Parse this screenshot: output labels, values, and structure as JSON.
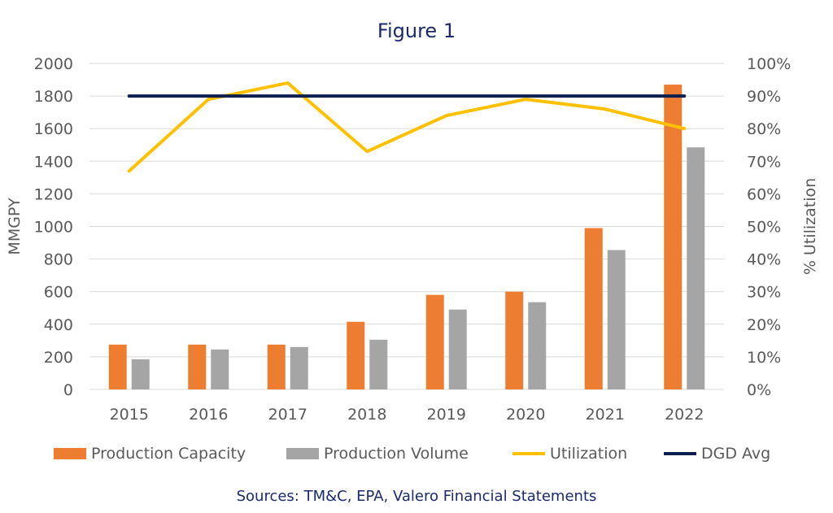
{
  "chart_data": {
    "type": "bar",
    "title": "Figure 1",
    "source": "Sources: TM&C, EPA, Valero Financial Statements",
    "categories": [
      "2015",
      "2016",
      "2017",
      "2018",
      "2019",
      "2020",
      "2021",
      "2022"
    ],
    "ylabel": "MMGPY",
    "ylabel2": "% Utilization",
    "ylim": [
      0,
      2000
    ],
    "y_ticks": [
      "0",
      "200",
      "400",
      "600",
      "800",
      "1000",
      "1200",
      "1400",
      "1600",
      "1800",
      "2000"
    ],
    "y2lim": [
      0,
      100
    ],
    "y2_ticks": [
      "0%",
      "10%",
      "20%",
      "30%",
      "40%",
      "50%",
      "60%",
      "70%",
      "80%",
      "90%",
      "100%"
    ],
    "grid": true,
    "legend_position": "bottom",
    "series": [
      {
        "name": "Production Capacity",
        "kind": "bar",
        "axis": "left",
        "color": "#ED7D31",
        "values": [
          275,
          275,
          275,
          415,
          580,
          600,
          990,
          1870
        ]
      },
      {
        "name": "Production Volume",
        "kind": "bar",
        "axis": "left",
        "color": "#A5A5A5",
        "values": [
          185,
          245,
          260,
          305,
          490,
          535,
          855,
          1485
        ]
      },
      {
        "name": "Utilization",
        "kind": "line",
        "axis": "right",
        "color": "#FFC000",
        "values": [
          67,
          89,
          94,
          73,
          84,
          89,
          86,
          80
        ]
      },
      {
        "name": "DGD Avg",
        "kind": "line",
        "axis": "right",
        "color": "#0D1F4F",
        "values": [
          90,
          90,
          90,
          90,
          90,
          90,
          90,
          90
        ]
      }
    ]
  }
}
